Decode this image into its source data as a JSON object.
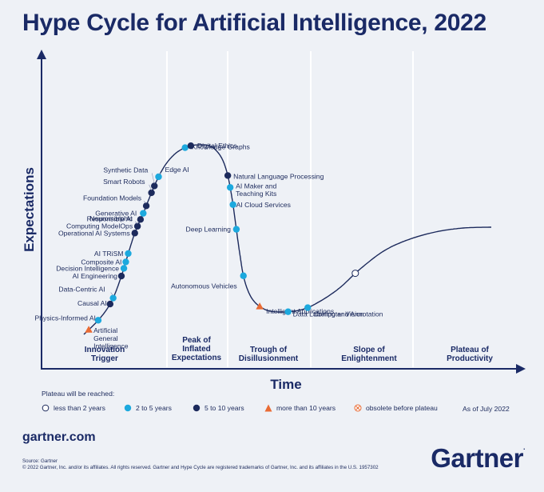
{
  "title": "Hype Cycle for Artificial Intelligence, 2022",
  "colors": {
    "navy": "#1a2a66",
    "light_blue": "#1ca9de",
    "dark_navy": "#1c2a5c",
    "orange": "#e96b34",
    "curve": "#1c2a5c",
    "background": "#eef1f6"
  },
  "chart_data": {
    "type": "scatter",
    "title": "Hype Cycle for Artificial Intelligence, 2022",
    "xlabel": "Time",
    "ylabel": "Expectations",
    "phases": [
      {
        "lines": [
          "Innovation",
          "Trigger"
        ]
      },
      {
        "lines": [
          "Peak of",
          "Inflated",
          "Expectations"
        ]
      },
      {
        "lines": [
          "Trough of",
          "Disillusionment"
        ]
      },
      {
        "lines": [
          "Slope of",
          "Enlightenment"
        ]
      },
      {
        "lines": [
          "Plateau of",
          "Productivity"
        ]
      }
    ],
    "plateau_categories": {
      "less_than_2": "less than 2 years",
      "2_to_5": "2 to 5 years",
      "5_to_10": "5 to 10 years",
      "more_than_10": "more than 10 years",
      "obsolete": "obsolete before plateau"
    },
    "points": [
      {
        "name": [
          "Artificial",
          "General",
          "Intelligence"
        ],
        "t": 0.01,
        "plateau": "more_than_10"
      },
      {
        "name": [
          "Physics-Informed AI"
        ],
        "t": 0.03,
        "plateau": "2_to_5"
      },
      {
        "name": [
          "Causal AI"
        ],
        "t": 0.06,
        "plateau": "5_to_10"
      },
      {
        "name": [
          "Data-Centric AI"
        ],
        "t": 0.07,
        "plateau": "2_to_5"
      },
      {
        "name": [
          "AI Engineering"
        ],
        "t": 0.105,
        "plateau": "5_to_10"
      },
      {
        "name": [
          "Decision Intelligence"
        ],
        "t": 0.117,
        "plateau": "2_to_5"
      },
      {
        "name": [
          "Composite AI"
        ],
        "t": 0.127,
        "plateau": "2_to_5"
      },
      {
        "name": [
          "AI TRiSM"
        ],
        "t": 0.14,
        "plateau": "2_to_5"
      },
      {
        "name": [
          "Operational AI Systems"
        ],
        "t": 0.172,
        "plateau": "5_to_10"
      },
      {
        "name": [
          "Neuromorphic",
          "Computing ModelOps"
        ],
        "t": 0.183,
        "plateau": "5_to_10"
      },
      {
        "name": [
          "Responsible AI"
        ],
        "t": 0.194,
        "plateau": "5_to_10"
      },
      {
        "name": [
          "Generative AI"
        ],
        "t": 0.204,
        "plateau": "2_to_5"
      },
      {
        "name": [
          "Foundation Models"
        ],
        "t": 0.216,
        "plateau": "5_to_10"
      },
      {
        "name": [
          "Smart Robots"
        ],
        "t": 0.237,
        "plateau": "5_to_10"
      },
      {
        "name": [
          "Synthetic Data"
        ],
        "t": 0.248,
        "plateau": "5_to_10"
      },
      {
        "name": [
          "Edge AI"
        ],
        "t": 0.263,
        "plateau": "2_to_5"
      },
      {
        "name": [
          "Knowledge Graphs"
        ],
        "t": 0.323,
        "plateau": "2_to_5"
      },
      {
        "name": [
          "Digital Ethics"
        ],
        "t": 0.332,
        "plateau": "5_to_10"
      },
      {
        "name": [
          "Natural Language Processing"
        ],
        "t": 0.414,
        "plateau": "5_to_10"
      },
      {
        "name": [
          "AI Maker and",
          "Teaching Kits"
        ],
        "t": 0.432,
        "plateau": "2_to_5"
      },
      {
        "name": [
          "AI Cloud Services"
        ],
        "t": 0.458,
        "plateau": "2_to_5"
      },
      {
        "name": [
          "Deep Learning"
        ],
        "t": 0.495,
        "plateau": "2_to_5"
      },
      {
        "name": [
          "Autonomous Vehicles"
        ],
        "t": 0.565,
        "plateau": "2_to_5"
      },
      {
        "name": [
          "Intelligent Applications"
        ],
        "t": 0.618,
        "plateau": "more_than_10"
      },
      {
        "name": [
          "Data Labeling and Annotation"
        ],
        "t": 0.662,
        "plateau": "2_to_5"
      },
      {
        "name": [
          "Computer Vision"
        ],
        "t": 0.692,
        "plateau": "2_to_5"
      },
      {
        "name": [
          ""
        ],
        "t": 0.78,
        "plateau": "less_than_2"
      }
    ]
  },
  "legend": {
    "title": "Plateau will be reached:",
    "as_of": "As of July 2022"
  },
  "footer": {
    "website": "gartner.com",
    "source": "Source: Gartner",
    "copyright": "© 2022 Gartner, Inc. and/or its affiliates. All rights reserved. Gartner and Hype Cycle are registered trademarks of Gartner, Inc. and its affiliates in the U.S. 1957302",
    "brand": "Gartner",
    "brand_mark": "."
  }
}
